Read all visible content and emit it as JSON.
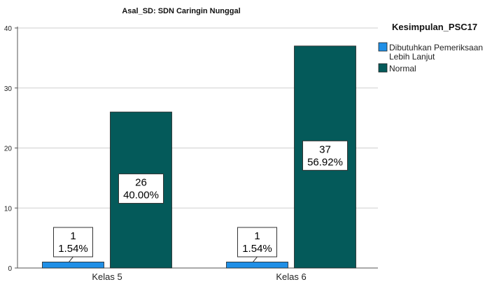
{
  "chart_data": {
    "type": "bar",
    "title": "Asal_SD: SDN Caringin Nunggal",
    "categories": [
      "Kelas 5",
      "Kelas 6"
    ],
    "series": [
      {
        "name": "Dibutuhkan Pemeriksaan Lebih Lanjut",
        "name_lines": [
          "Dibutuhkan Pemeriksaan",
          "Lebih Lanjut"
        ],
        "color": "#1f8fe6",
        "values": [
          1,
          1
        ],
        "labels": [
          [
            "1",
            "1.54%"
          ],
          [
            "1",
            "1.54%"
          ]
        ]
      },
      {
        "name": "Normal",
        "name_lines": [
          "Normal"
        ],
        "color": "#045a5a",
        "values": [
          26,
          37
        ],
        "labels": [
          [
            "26",
            "40.00%"
          ],
          [
            "37",
            "56.92%"
          ]
        ]
      }
    ],
    "yticks": [
      0,
      10,
      20,
      30,
      40
    ],
    "ylim": [
      0,
      40
    ],
    "grid": true,
    "legend": {
      "title": "Kesimpulan_PSC17",
      "placement": "right"
    },
    "xlabel": "",
    "ylabel": ""
  }
}
